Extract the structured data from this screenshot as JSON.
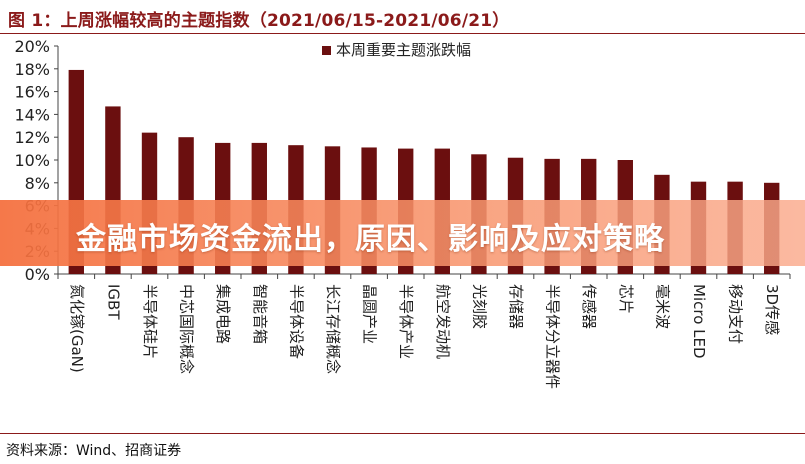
{
  "header": {
    "title": "图 1：上周涨幅较高的主题指数（2021/06/15-2021/06/21）"
  },
  "footer": {
    "source": "资料来源：Wind、招商证券"
  },
  "banner": {
    "text": "金融市场资金流出，原因、影响及应对策略"
  },
  "colors": {
    "bar": "#6b0f0f",
    "axis": "#444444",
    "accent": "#8b1a1a",
    "banner": "#f46e3c"
  },
  "chart_data": {
    "type": "bar",
    "categories": [
      "氮化镓(GaN)",
      "IGBT",
      "半导体硅片",
      "中芯国际概念",
      "集成电路",
      "智能音箱",
      "半导体设备",
      "长江存储概念",
      "晶圆产业",
      "半导体产业",
      "航空发动机",
      "光刻胶",
      "存储器",
      "半导体分立器件",
      "传感器",
      "芯片",
      "毫米波",
      "Micro LED",
      "移动支付",
      "3D传感"
    ],
    "series": [
      {
        "name": "本周重要主题涨跌幅",
        "values": [
          17.9,
          14.7,
          12.4,
          12.0,
          11.5,
          11.5,
          11.3,
          11.2,
          11.1,
          11.0,
          11.0,
          10.5,
          10.2,
          10.1,
          10.1,
          10.0,
          8.7,
          8.1,
          8.1,
          8.0
        ]
      }
    ],
    "y_ticks": [
      "0%",
      "2%",
      "4%",
      "6%",
      "8%",
      "10%",
      "12%",
      "14%",
      "16%",
      "18%",
      "20%"
    ],
    "ylim": [
      0,
      20
    ],
    "legend_position": "top-right",
    "grid": false
  }
}
